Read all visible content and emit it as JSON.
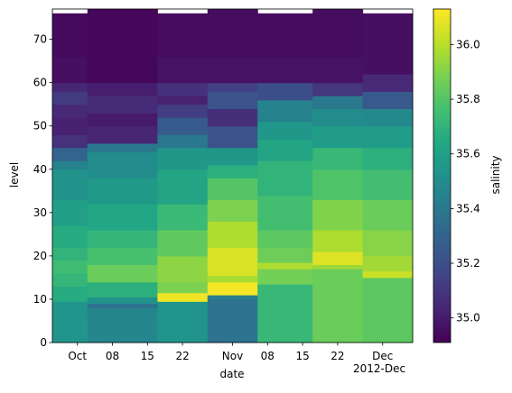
{
  "chart_data": {
    "type": "heatmap",
    "xlabel": "date",
    "ylabel": "level",
    "colorbar_label": "salinity",
    "colormap": "viridis",
    "vmin": 34.91,
    "vmax": 36.13,
    "x_tick_labels": [
      "Oct",
      "08",
      "15",
      "22",
      "Nov",
      "08",
      "15",
      "22",
      "Dec"
    ],
    "x_offset_label": "2012-Dec",
    "y_range": [
      0,
      77
    ],
    "y_ticks": [
      0,
      10,
      20,
      30,
      40,
      50,
      60,
      70
    ],
    "colorbar_ticks": [
      35.0,
      35.2,
      35.4,
      35.6,
      35.8,
      36.0
    ],
    "columns": [
      {
        "date_range": [
          "2012-09-26",
          "2012-10-03"
        ],
        "top_level": 76,
        "bands": [
          {
            "from": 0,
            "to": 9.5,
            "value": 35.54
          },
          {
            "from": 9.5,
            "to": 13,
            "value": 35.66
          },
          {
            "from": 13,
            "to": 16,
            "value": 35.71
          },
          {
            "from": 16,
            "to": 19,
            "value": 35.75
          },
          {
            "from": 19,
            "to": 22,
            "value": 35.7
          },
          {
            "from": 22,
            "to": 27,
            "value": 35.66
          },
          {
            "from": 27,
            "to": 33,
            "value": 35.6
          },
          {
            "from": 33,
            "to": 40,
            "value": 35.53
          },
          {
            "from": 40,
            "to": 42,
            "value": 35.45
          },
          {
            "from": 42,
            "to": 45,
            "value": 35.3
          },
          {
            "from": 45,
            "to": 48,
            "value": 35.08
          },
          {
            "from": 48,
            "to": 52,
            "value": 35.02
          },
          {
            "from": 52,
            "to": 55,
            "value": 35.05
          },
          {
            "from": 55,
            "to": 58,
            "value": 35.12
          },
          {
            "from": 58,
            "to": 60,
            "value": 35.04
          },
          {
            "from": 60,
            "to": 66,
            "value": 34.96
          },
          {
            "from": 66,
            "to": 76,
            "value": 34.94
          }
        ]
      },
      {
        "date_range": [
          "2012-10-03",
          "2012-10-17"
        ],
        "top_level": 77,
        "bands": [
          {
            "from": 0,
            "to": 6,
            "value": 35.47
          },
          {
            "from": 6,
            "to": 8,
            "value": 35.46
          },
          {
            "from": 8,
            "to": 9,
            "value": 35.36
          },
          {
            "from": 9,
            "to": 10.5,
            "value": 35.53
          },
          {
            "from": 10.5,
            "to": 14,
            "value": 35.68
          },
          {
            "from": 14,
            "to": 18,
            "value": 35.85
          },
          {
            "from": 18,
            "to": 22,
            "value": 35.77
          },
          {
            "from": 22,
            "to": 26,
            "value": 35.71
          },
          {
            "from": 26,
            "to": 32,
            "value": 35.63
          },
          {
            "from": 32,
            "to": 38,
            "value": 35.56
          },
          {
            "from": 38,
            "to": 44,
            "value": 35.5
          },
          {
            "from": 44,
            "to": 46,
            "value": 35.4
          },
          {
            "from": 46,
            "to": 50,
            "value": 35.04
          },
          {
            "from": 50,
            "to": 53,
            "value": 35.0
          },
          {
            "from": 53,
            "to": 57,
            "value": 35.06
          },
          {
            "from": 57,
            "to": 60,
            "value": 35.01
          },
          {
            "from": 60,
            "to": 77,
            "value": 34.93
          }
        ]
      },
      {
        "date_range": [
          "2012-10-17",
          "2012-10-27"
        ],
        "top_level": 76,
        "bands": [
          {
            "from": 0,
            "to": 9.5,
            "value": 35.54
          },
          {
            "from": 9.5,
            "to": 11.5,
            "value": 36.1
          },
          {
            "from": 11.5,
            "to": 14,
            "value": 35.89
          },
          {
            "from": 14,
            "to": 20,
            "value": 35.92
          },
          {
            "from": 20,
            "to": 26,
            "value": 35.83
          },
          {
            "from": 26,
            "to": 32,
            "value": 35.73
          },
          {
            "from": 32,
            "to": 40,
            "value": 35.62
          },
          {
            "from": 40,
            "to": 45,
            "value": 35.55
          },
          {
            "from": 45,
            "to": 48,
            "value": 35.4
          },
          {
            "from": 48,
            "to": 52,
            "value": 35.26
          },
          {
            "from": 52,
            "to": 55,
            "value": 35.13
          },
          {
            "from": 55,
            "to": 57,
            "value": 35.02
          },
          {
            "from": 57,
            "to": 60,
            "value": 35.08
          },
          {
            "from": 60,
            "to": 66,
            "value": 34.97
          },
          {
            "from": 66,
            "to": 76,
            "value": 34.95
          }
        ]
      },
      {
        "date_range": [
          "2012-10-27",
          "2012-11-06"
        ],
        "top_level": 77,
        "bands": [
          {
            "from": 0,
            "to": 10,
            "value": 35.37
          },
          {
            "from": 10,
            "to": 11,
            "value": 35.43
          },
          {
            "from": 11,
            "to": 14,
            "value": 36.11
          },
          {
            "from": 14,
            "to": 15.5,
            "value": 35.97
          },
          {
            "from": 15.5,
            "to": 22,
            "value": 36.06
          },
          {
            "from": 22,
            "to": 28,
            "value": 35.98
          },
          {
            "from": 28,
            "to": 33,
            "value": 35.89
          },
          {
            "from": 33,
            "to": 38,
            "value": 35.8
          },
          {
            "from": 38,
            "to": 41,
            "value": 35.68
          },
          {
            "from": 41,
            "to": 45,
            "value": 35.55
          },
          {
            "from": 45,
            "to": 50,
            "value": 35.22
          },
          {
            "from": 50,
            "to": 54,
            "value": 35.07
          },
          {
            "from": 54,
            "to": 58,
            "value": 35.22
          },
          {
            "from": 58,
            "to": 60,
            "value": 35.14
          },
          {
            "from": 60,
            "to": 66,
            "value": 34.97
          },
          {
            "from": 66,
            "to": 77,
            "value": 34.95
          }
        ]
      },
      {
        "date_range": [
          "2012-11-06",
          "2012-11-17"
        ],
        "top_level": 76,
        "bands": [
          {
            "from": 0,
            "to": 13.5,
            "value": 35.72
          },
          {
            "from": 13.5,
            "to": 17,
            "value": 35.87
          },
          {
            "from": 17,
            "to": 18.5,
            "value": 35.98
          },
          {
            "from": 18.5,
            "to": 22,
            "value": 35.86
          },
          {
            "from": 22,
            "to": 26,
            "value": 35.82
          },
          {
            "from": 26,
            "to": 34,
            "value": 35.76
          },
          {
            "from": 34,
            "to": 42,
            "value": 35.7
          },
          {
            "from": 42,
            "to": 47,
            "value": 35.62
          },
          {
            "from": 47,
            "to": 51,
            "value": 35.55
          },
          {
            "from": 51,
            "to": 56,
            "value": 35.45
          },
          {
            "from": 56,
            "to": 60,
            "value": 35.2
          },
          {
            "from": 60,
            "to": 66,
            "value": 34.97
          },
          {
            "from": 66,
            "to": 76,
            "value": 34.95
          }
        ]
      },
      {
        "date_range": [
          "2012-11-17",
          "2012-11-27"
        ],
        "top_level": 77,
        "bands": [
          {
            "from": 0,
            "to": 17,
            "value": 35.85
          },
          {
            "from": 17,
            "to": 18,
            "value": 35.95
          },
          {
            "from": 18,
            "to": 21,
            "value": 36.07
          },
          {
            "from": 21,
            "to": 26,
            "value": 35.98
          },
          {
            "from": 26,
            "to": 33,
            "value": 35.9
          },
          {
            "from": 33,
            "to": 40,
            "value": 35.79
          },
          {
            "from": 40,
            "to": 45,
            "value": 35.72
          },
          {
            "from": 45,
            "to": 50,
            "value": 35.58
          },
          {
            "from": 50,
            "to": 54,
            "value": 35.5
          },
          {
            "from": 54,
            "to": 57,
            "value": 35.4
          },
          {
            "from": 57,
            "to": 60,
            "value": 35.1
          },
          {
            "from": 60,
            "to": 66,
            "value": 34.97
          },
          {
            "from": 66,
            "to": 77,
            "value": 34.95
          }
        ]
      },
      {
        "date_range": [
          "2012-11-27",
          "2012-12-07"
        ],
        "top_level": 76,
        "bands": [
          {
            "from": 0,
            "to": 15,
            "value": 35.82
          },
          {
            "from": 15,
            "to": 16.5,
            "value": 36.03
          },
          {
            "from": 16.5,
            "to": 20,
            "value": 35.96
          },
          {
            "from": 20,
            "to": 26,
            "value": 35.91
          },
          {
            "from": 26,
            "to": 33,
            "value": 35.85
          },
          {
            "from": 33,
            "to": 40,
            "value": 35.76
          },
          {
            "from": 40,
            "to": 45,
            "value": 35.68
          },
          {
            "from": 45,
            "to": 50,
            "value": 35.58
          },
          {
            "from": 50,
            "to": 54,
            "value": 35.48
          },
          {
            "from": 54,
            "to": 58,
            "value": 35.25
          },
          {
            "from": 58,
            "to": 62,
            "value": 35.05
          },
          {
            "from": 62,
            "to": 76,
            "value": 34.96
          }
        ]
      }
    ]
  }
}
